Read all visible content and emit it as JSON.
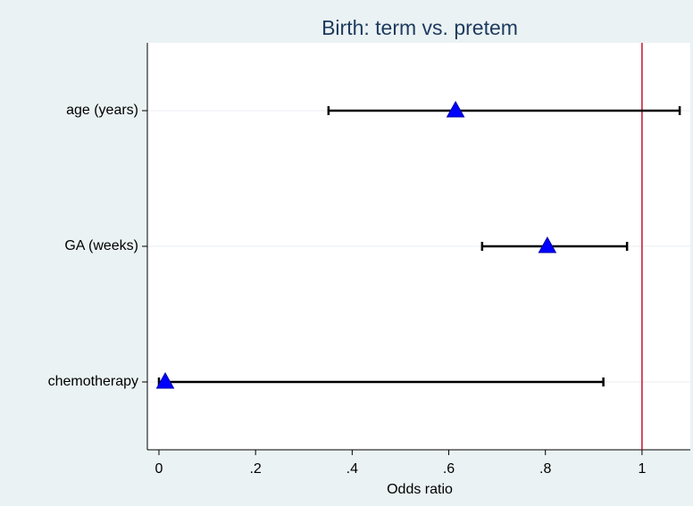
{
  "chart_data": {
    "type": "forest",
    "title": "Birth: term vs. pretem",
    "x_label": "Odds ratio",
    "categories": [
      "age (years)",
      "GA (weeks)",
      "chemotherapy"
    ],
    "values": [
      0.614,
      0.804,
      0.013
    ],
    "ci_low": [
      0.351,
      0.669,
      0.0
    ],
    "ci_high": [
      1.078,
      0.969,
      0.92
    ],
    "color": "#0000ff",
    "error_color": "#000000",
    "reference_line": {
      "value": 1,
      "color": "#c8102e"
    },
    "xlim": [
      -0.024,
      1.1
    ],
    "xticks": [
      0,
      {
        "value": 0.2,
        "label": ".2"
      },
      {
        "value": 0.4,
        "label": ".4"
      },
      {
        "value": 0.6,
        "label": ".6"
      },
      {
        "value": 0.8,
        "label": ".8"
      },
      1
    ],
    "grid": true
  }
}
